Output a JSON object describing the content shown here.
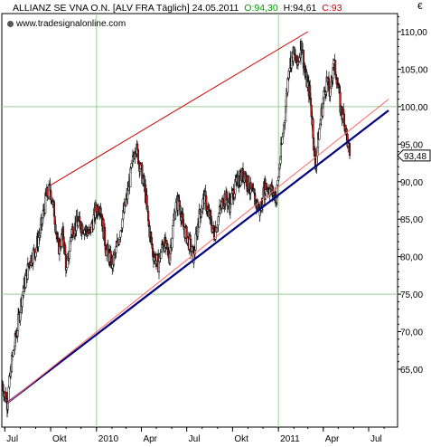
{
  "header": {
    "title": "ALLIANZ SE VNA O.N. [ALV FRA  Täglich] 24.05.2011",
    "open_label": "O:94,30",
    "high_label": "H:94,61",
    "close_label": "C:93",
    "currency": "€"
  },
  "watermark": "www.tradesignalonline.com",
  "colors": {
    "up_candle": "#ffffff",
    "down_candle": "#cc2222",
    "candle_outline": "#000000",
    "upper_trendline": "#cc0000",
    "lower_trendline": "#000080",
    "inner_trendline": "#ff6666",
    "grid": "#99cc99",
    "last_price_box": "#ffffff"
  },
  "chart_data": {
    "type": "candlestick",
    "x_tick_labels": [
      "Jul",
      "Okt",
      "2010",
      "Apr",
      "Jul",
      "Okt",
      "2011",
      "Apr",
      "Jul"
    ],
    "y_tick_labels": [
      "65,00",
      "70,00",
      "75,00",
      "80,00",
      "85,00",
      "90,00",
      "95,00",
      "100,00",
      "105,00",
      "110,00"
    ],
    "y_ticks": [
      65,
      70,
      75,
      80,
      85,
      90,
      95,
      100,
      105,
      110
    ],
    "ylim": [
      60,
      112
    ],
    "grid": true,
    "last_price_label": "93,48",
    "last_price": 93.48,
    "series_close_anchors": [
      [
        "2009-06-26",
        63.0
      ],
      [
        "2009-07-06",
        60.5
      ],
      [
        "2009-07-15",
        66.0
      ],
      [
        "2009-07-25",
        70.0
      ],
      [
        "2009-08-05",
        75.0
      ],
      [
        "2009-08-20",
        79.5
      ],
      [
        "2009-09-01",
        81.0
      ],
      [
        "2009-09-12",
        84.0
      ],
      [
        "2009-09-22",
        88.0
      ],
      [
        "2009-09-30",
        89.0
      ],
      [
        "2009-10-08",
        86.0
      ],
      [
        "2009-10-16",
        81.0
      ],
      [
        "2009-10-26",
        83.0
      ],
      [
        "2009-11-02",
        78.0
      ],
      [
        "2009-11-12",
        83.5
      ],
      [
        "2009-11-24",
        84.5
      ],
      [
        "2009-12-05",
        84.0
      ],
      [
        "2009-12-18",
        83.0
      ],
      [
        "2009-12-30",
        86.0
      ],
      [
        "2010-01-08",
        87.0
      ],
      [
        "2010-01-20",
        81.0
      ],
      [
        "2010-02-02",
        79.0
      ],
      [
        "2010-02-10",
        81.0
      ],
      [
        "2010-02-22",
        85.0
      ],
      [
        "2010-03-03",
        88.0
      ],
      [
        "2010-03-12",
        91.5
      ],
      [
        "2010-03-20",
        95.0
      ],
      [
        "2010-03-28",
        92.5
      ],
      [
        "2010-04-08",
        89.0
      ],
      [
        "2010-04-16",
        84.0
      ],
      [
        "2010-04-24",
        80.5
      ],
      [
        "2010-05-05",
        79.0
      ],
      [
        "2010-05-15",
        82.0
      ],
      [
        "2010-05-27",
        80.0
      ],
      [
        "2010-06-08",
        86.5
      ],
      [
        "2010-06-15",
        87.5
      ],
      [
        "2010-06-24",
        84.0
      ],
      [
        "2010-07-05",
        82.0
      ],
      [
        "2010-07-15",
        80.0
      ],
      [
        "2010-07-25",
        85.0
      ],
      [
        "2010-08-05",
        88.0
      ],
      [
        "2010-08-15",
        85.5
      ],
      [
        "2010-08-25",
        83.0
      ],
      [
        "2010-09-05",
        86.0
      ],
      [
        "2010-09-15",
        88.0
      ],
      [
        "2010-09-25",
        87.0
      ],
      [
        "2010-10-05",
        89.0
      ],
      [
        "2010-10-15",
        90.5
      ],
      [
        "2010-10-25",
        91.0
      ],
      [
        "2010-11-05",
        89.0
      ],
      [
        "2010-11-15",
        87.5
      ],
      [
        "2010-11-25",
        86.0
      ],
      [
        "2010-12-05",
        89.5
      ],
      [
        "2010-12-15",
        89.0
      ],
      [
        "2010-12-28",
        88.0
      ],
      [
        "2011-01-06",
        94.0
      ],
      [
        "2011-01-14",
        99.0
      ],
      [
        "2011-01-22",
        105.5
      ],
      [
        "2011-01-31",
        107.0
      ],
      [
        "2011-02-08",
        105.5
      ],
      [
        "2011-02-16",
        108.5
      ],
      [
        "2011-02-24",
        104.0
      ],
      [
        "2011-03-04",
        102.0
      ],
      [
        "2011-03-10",
        98.0
      ],
      [
        "2011-03-16",
        92.0
      ],
      [
        "2011-03-24",
        97.0
      ],
      [
        "2011-04-01",
        101.0
      ],
      [
        "2011-04-08",
        103.5
      ],
      [
        "2011-04-15",
        101.5
      ],
      [
        "2011-04-21",
        106.0
      ],
      [
        "2011-04-28",
        104.0
      ],
      [
        "2011-05-06",
        99.5
      ],
      [
        "2011-05-13",
        98.5
      ],
      [
        "2011-05-18",
        96.0
      ],
      [
        "2011-05-24",
        93.48
      ]
    ],
    "trendlines": [
      {
        "role": "upper",
        "from": [
          "2009-09-30",
          89.5
        ],
        "to": [
          "2011-03-01",
          110.0
        ]
      },
      {
        "role": "lower",
        "from": [
          "2009-07-06",
          60.5
        ],
        "to": [
          "2011-08-10",
          99.5
        ]
      },
      {
        "role": "inner",
        "from": [
          "2009-07-06",
          60.5
        ],
        "to": [
          "2011-08-10",
          101.0
        ]
      }
    ]
  }
}
